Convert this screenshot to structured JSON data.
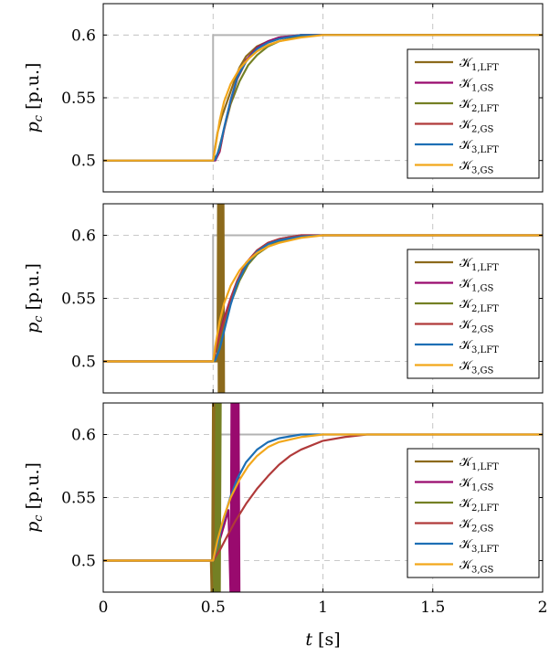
{
  "chart_data": [
    {
      "type": "line",
      "title": "",
      "ylabel": "p_c [p.u.]",
      "xlabel": "",
      "xlim": [
        0,
        2
      ],
      "ylim": [
        0.475,
        0.625
      ],
      "yticks": [
        "0.5",
        "0.55",
        "0.6"
      ],
      "grid": true,
      "legend_position": "bottom-right",
      "reference": {
        "color": "#b3b3b3",
        "x": [
          0,
          0.5,
          0.5,
          2
        ],
        "y": [
          0.5,
          0.5,
          0.6,
          0.6
        ]
      },
      "series": [
        {
          "name": "K1,LFT",
          "label_main": "𝒦",
          "label_sub": "1,LFT",
          "color": "#8c6a1c",
          "x": [
            0,
            0.5,
            0.52,
            0.54,
            0.56,
            0.58,
            0.6,
            0.62,
            0.65,
            0.7,
            0.75,
            0.8,
            0.9,
            1.0,
            1.1,
            2.0
          ],
          "y": [
            0.5,
            0.5,
            0.522,
            0.535,
            0.545,
            0.555,
            0.565,
            0.574,
            0.583,
            0.591,
            0.595,
            0.598,
            0.6,
            0.6,
            0.6,
            0.6
          ]
        },
        {
          "name": "K1,GS",
          "label_main": "𝒦",
          "label_sub": "1,GS",
          "color": "#990a6e",
          "x": [
            0,
            0.5,
            0.51,
            0.53,
            0.55,
            0.58,
            0.61,
            0.65,
            0.7,
            0.75,
            0.8,
            0.9,
            1.0,
            2.0
          ],
          "y": [
            0.5,
            0.5,
            0.5,
            0.507,
            0.525,
            0.548,
            0.566,
            0.58,
            0.59,
            0.595,
            0.598,
            0.6,
            0.6,
            0.6
          ]
        },
        {
          "name": "K2,LFT",
          "label_main": "𝒦",
          "label_sub": "2,LFT",
          "color": "#748024",
          "x": [
            0,
            0.5,
            0.52,
            0.55,
            0.58,
            0.62,
            0.66,
            0.7,
            0.75,
            0.8,
            0.9,
            1.0,
            2.0
          ],
          "y": [
            0.5,
            0.5,
            0.505,
            0.525,
            0.545,
            0.563,
            0.576,
            0.584,
            0.591,
            0.595,
            0.599,
            0.6,
            0.6
          ]
        },
        {
          "name": "K2,GS",
          "label_main": "𝒦",
          "label_sub": "2,GS",
          "color": "#b03a3a",
          "x": [
            0,
            0.5,
            0.51,
            0.53,
            0.55,
            0.58,
            0.61,
            0.65,
            0.7,
            0.75,
            0.8,
            0.9,
            1.0,
            2.0
          ],
          "y": [
            0.5,
            0.5,
            0.501,
            0.508,
            0.525,
            0.547,
            0.565,
            0.579,
            0.589,
            0.594,
            0.597,
            0.6,
            0.6,
            0.6
          ]
        },
        {
          "name": "K3,LFT",
          "label_main": "𝒦",
          "label_sub": "3,LFT",
          "color": "#1d6fb5",
          "x": [
            0,
            0.5,
            0.51,
            0.53,
            0.55,
            0.58,
            0.61,
            0.65,
            0.7,
            0.75,
            0.8,
            0.9,
            1.0,
            2.0
          ],
          "y": [
            0.5,
            0.5,
            0.501,
            0.51,
            0.526,
            0.548,
            0.566,
            0.579,
            0.589,
            0.594,
            0.597,
            0.6,
            0.6,
            0.6
          ]
        },
        {
          "name": "K3,GS",
          "label_main": "𝒦",
          "label_sub": "3,GS",
          "color": "#f2a71b",
          "x": [
            0,
            0.5,
            0.51,
            0.53,
            0.55,
            0.58,
            0.62,
            0.66,
            0.7,
            0.75,
            0.8,
            0.9,
            1.0,
            1.1,
            2.0
          ],
          "y": [
            0.5,
            0.5,
            0.51,
            0.532,
            0.547,
            0.561,
            0.573,
            0.581,
            0.587,
            0.592,
            0.595,
            0.598,
            0.6,
            0.6,
            0.6
          ]
        }
      ]
    },
    {
      "type": "line",
      "title": "",
      "ylabel": "p_c [p.u.]",
      "xlabel": "",
      "xlim": [
        0,
        2
      ],
      "ylim": [
        0.475,
        0.625
      ],
      "yticks": [
        "0.5",
        "0.55",
        "0.6"
      ],
      "grid": true,
      "legend_position": "bottom-right",
      "reference": {
        "color": "#b3b3b3",
        "x": [
          0,
          0.5,
          0.5,
          2
        ],
        "y": [
          0.5,
          0.5,
          0.6,
          0.6
        ]
      },
      "series": [
        {
          "name": "K1,LFT",
          "label_main": "𝒦",
          "label_sub": "1,LFT",
          "color": "#8c6a1c",
          "x": [
            0,
            0.5,
            0.52,
            0.523,
            0.526,
            0.529,
            0.532,
            0.535,
            0.538,
            0.541,
            0.544,
            0.547,
            0.55
          ],
          "y": [
            0.5,
            0.5,
            0.5,
            0.64,
            0.46,
            0.64,
            0.46,
            0.64,
            0.46,
            0.64,
            0.46,
            0.64,
            0.46
          ]
        },
        {
          "name": "K1,GS",
          "label_main": "𝒦",
          "label_sub": "1,GS",
          "color": "#990a6e",
          "x": [
            0,
            0.5,
            0.52,
            0.55,
            0.58,
            0.61,
            0.65,
            0.7,
            0.75,
            0.8,
            0.9,
            1.0,
            2.0
          ],
          "y": [
            0.5,
            0.5,
            0.515,
            0.534,
            0.55,
            0.564,
            0.578,
            0.588,
            0.594,
            0.597,
            0.6,
            0.6,
            0.6
          ]
        },
        {
          "name": "K2,LFT",
          "label_main": "𝒦",
          "label_sub": "2,LFT",
          "color": "#748024",
          "x": [
            0,
            0.5,
            0.52,
            0.55,
            0.58,
            0.62,
            0.66,
            0.7,
            0.75,
            0.8,
            0.9,
            1.0,
            2.0
          ],
          "y": [
            0.5,
            0.5,
            0.506,
            0.526,
            0.546,
            0.564,
            0.577,
            0.585,
            0.591,
            0.595,
            0.599,
            0.6,
            0.6
          ]
        },
        {
          "name": "K2,GS",
          "label_main": "𝒦",
          "label_sub": "2,GS",
          "color": "#b03a3a",
          "x": [
            0,
            0.5,
            0.52,
            0.55,
            0.58,
            0.61,
            0.65,
            0.7,
            0.75,
            0.8,
            0.9,
            1.0,
            2.0
          ],
          "y": [
            0.5,
            0.5,
            0.514,
            0.532,
            0.549,
            0.564,
            0.578,
            0.588,
            0.594,
            0.597,
            0.6,
            0.6,
            0.6
          ]
        },
        {
          "name": "K3,LFT",
          "label_main": "𝒦",
          "label_sub": "3,LFT",
          "color": "#1d6fb5",
          "x": [
            0,
            0.5,
            0.51,
            0.53,
            0.55,
            0.58,
            0.61,
            0.65,
            0.7,
            0.75,
            0.8,
            0.9,
            1.0,
            1.1,
            2.0
          ],
          "y": [
            0.5,
            0.5,
            0.501,
            0.51,
            0.524,
            0.545,
            0.562,
            0.576,
            0.587,
            0.593,
            0.596,
            0.599,
            0.6,
            0.6,
            0.6
          ]
        },
        {
          "name": "K3,GS",
          "label_main": "𝒦",
          "label_sub": "3,GS",
          "color": "#f2a71b",
          "x": [
            0,
            0.5,
            0.51,
            0.53,
            0.55,
            0.58,
            0.62,
            0.66,
            0.7,
            0.75,
            0.8,
            0.9,
            1.0,
            1.1,
            2.0
          ],
          "y": [
            0.5,
            0.5,
            0.512,
            0.532,
            0.546,
            0.56,
            0.572,
            0.58,
            0.586,
            0.591,
            0.594,
            0.598,
            0.6,
            0.6,
            0.6
          ]
        }
      ]
    },
    {
      "type": "line",
      "title": "",
      "ylabel": "p_c [p.u.]",
      "xlabel": "t [s]",
      "xlim": [
        0,
        2
      ],
      "ylim": [
        0.475,
        0.625
      ],
      "yticks": [
        "0.5",
        "0.55",
        "0.6"
      ],
      "xticks": [
        "0",
        "0.5",
        "1",
        "1.5",
        "2"
      ],
      "grid": true,
      "legend_position": "bottom-right",
      "reference": {
        "color": "#b3b3b3",
        "x": [
          0,
          0.5,
          0.5,
          2
        ],
        "y": [
          0.5,
          0.5,
          0.6,
          0.6
        ]
      },
      "series": [
        {
          "name": "K1,LFT",
          "label_main": "𝒦",
          "label_sub": "1,LFT",
          "color": "#8c6a1c",
          "x": [
            0,
            0.49,
            0.495,
            0.5,
            0.505,
            0.51,
            0.515,
            0.52
          ],
          "y": [
            0.5,
            0.5,
            0.46,
            0.64,
            0.46,
            0.64,
            0.46,
            0.64
          ]
        },
        {
          "name": "K1,GS",
          "label_main": "𝒦",
          "label_sub": "1,GS",
          "color": "#990a6e",
          "x": [
            0,
            0.5,
            0.52,
            0.55,
            0.57,
            0.58,
            0.584,
            0.588,
            0.592,
            0.596,
            0.6,
            0.604,
            0.608,
            0.612,
            0.616,
            0.62
          ],
          "y": [
            0.5,
            0.5,
            0.51,
            0.528,
            0.54,
            0.47,
            0.63,
            0.47,
            0.63,
            0.47,
            0.63,
            0.47,
            0.63,
            0.47,
            0.63,
            0.47
          ]
        },
        {
          "name": "K2,LFT",
          "label_main": "𝒦",
          "label_sub": "2,LFT",
          "color": "#748024",
          "x": [
            0,
            0.5,
            0.51,
            0.515,
            0.52,
            0.525,
            0.53,
            0.535
          ],
          "y": [
            0.5,
            0.5,
            0.46,
            0.64,
            0.46,
            0.64,
            0.46,
            0.64
          ]
        },
        {
          "name": "K2,GS",
          "label_main": "𝒦",
          "label_sub": "2,GS",
          "color": "#b03a3a",
          "x": [
            0,
            0.5,
            0.53,
            0.56,
            0.6,
            0.65,
            0.7,
            0.75,
            0.8,
            0.85,
            0.9,
            1.0,
            1.1,
            1.2,
            2.0
          ],
          "y": [
            0.5,
            0.5,
            0.508,
            0.518,
            0.531,
            0.545,
            0.557,
            0.567,
            0.576,
            0.583,
            0.588,
            0.595,
            0.598,
            0.6,
            0.6
          ]
        },
        {
          "name": "K3,LFT",
          "label_main": "𝒦",
          "label_sub": "3,LFT",
          "color": "#1d6fb5",
          "x": [
            0,
            0.5,
            0.52,
            0.55,
            0.58,
            0.61,
            0.65,
            0.7,
            0.75,
            0.8,
            0.9,
            1.0,
            2.0
          ],
          "y": [
            0.5,
            0.5,
            0.513,
            0.534,
            0.551,
            0.565,
            0.578,
            0.588,
            0.594,
            0.597,
            0.6,
            0.6,
            0.6
          ]
        },
        {
          "name": "K3,GS",
          "label_main": "𝒦",
          "label_sub": "3,GS",
          "color": "#f2a71b",
          "x": [
            0,
            0.5,
            0.52,
            0.55,
            0.58,
            0.62,
            0.66,
            0.7,
            0.75,
            0.8,
            0.9,
            1.0,
            1.1,
            2.0
          ],
          "y": [
            0.5,
            0.5,
            0.516,
            0.535,
            0.55,
            0.564,
            0.575,
            0.583,
            0.59,
            0.594,
            0.598,
            0.6,
            0.6,
            0.6
          ]
        }
      ]
    }
  ]
}
